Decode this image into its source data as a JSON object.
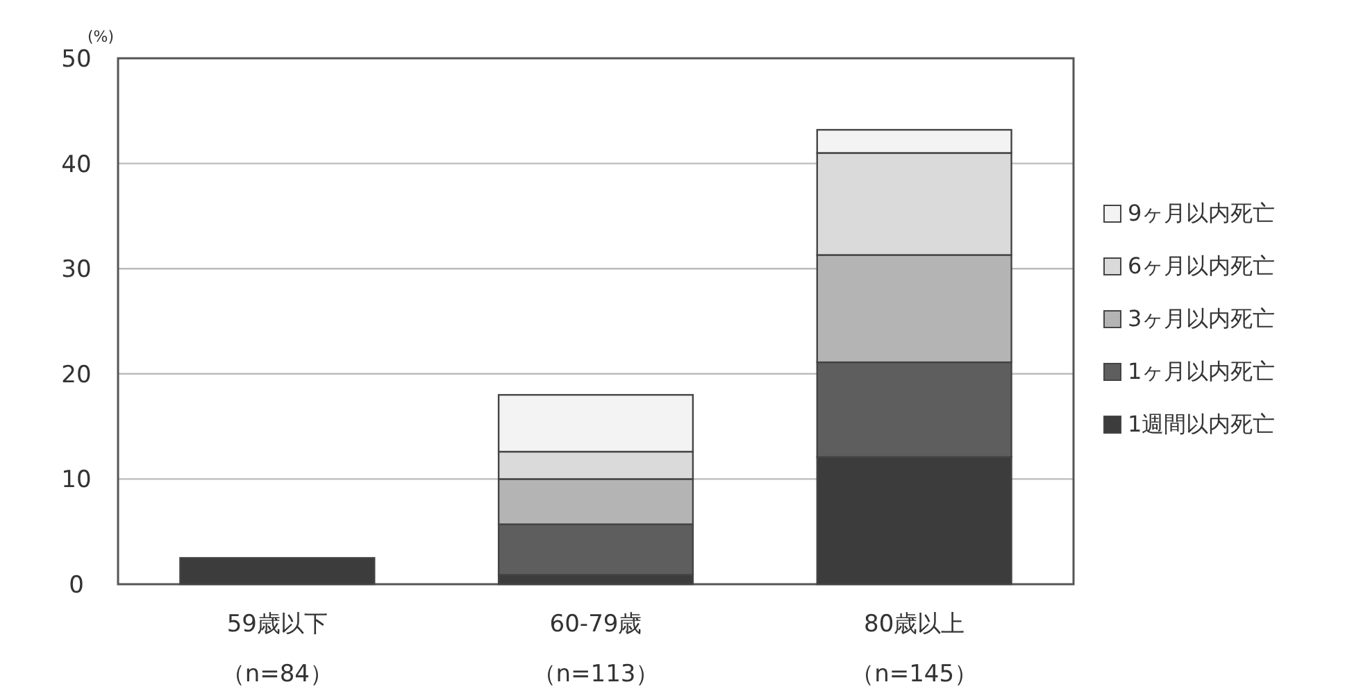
{
  "chart_data": {
    "type": "bar",
    "stacked": true,
    "ylabel": "(%)",
    "categories": [
      "59歳以下（n=84）",
      "60-79歳（n=113）",
      "80歳以上（n=145）"
    ],
    "series": [
      {
        "name": "1週間以内死亡",
        "color": "#3c3c3c",
        "values": [
          2.5,
          0.9,
          12.1
        ]
      },
      {
        "name": "1ヶ月以内死亡",
        "color": "#5e5e5e",
        "values": [
          0,
          4.8,
          9.0
        ]
      },
      {
        "name": "3ヶ月以内死亡",
        "color": "#b4b4b4",
        "values": [
          0,
          4.3,
          10.2
        ]
      },
      {
        "name": "6ヶ月以内死亡",
        "color": "#dadada",
        "values": [
          0,
          2.6,
          9.7
        ]
      },
      {
        "name": "9ヶ月以内死亡",
        "color": "#f3f3f3",
        "values": [
          0,
          5.4,
          2.2
        ]
      }
    ],
    "ylim": [
      0,
      50
    ],
    "yticks": [
      0,
      10,
      20,
      30,
      40,
      50
    ],
    "grid": "y",
    "legend": "right"
  }
}
